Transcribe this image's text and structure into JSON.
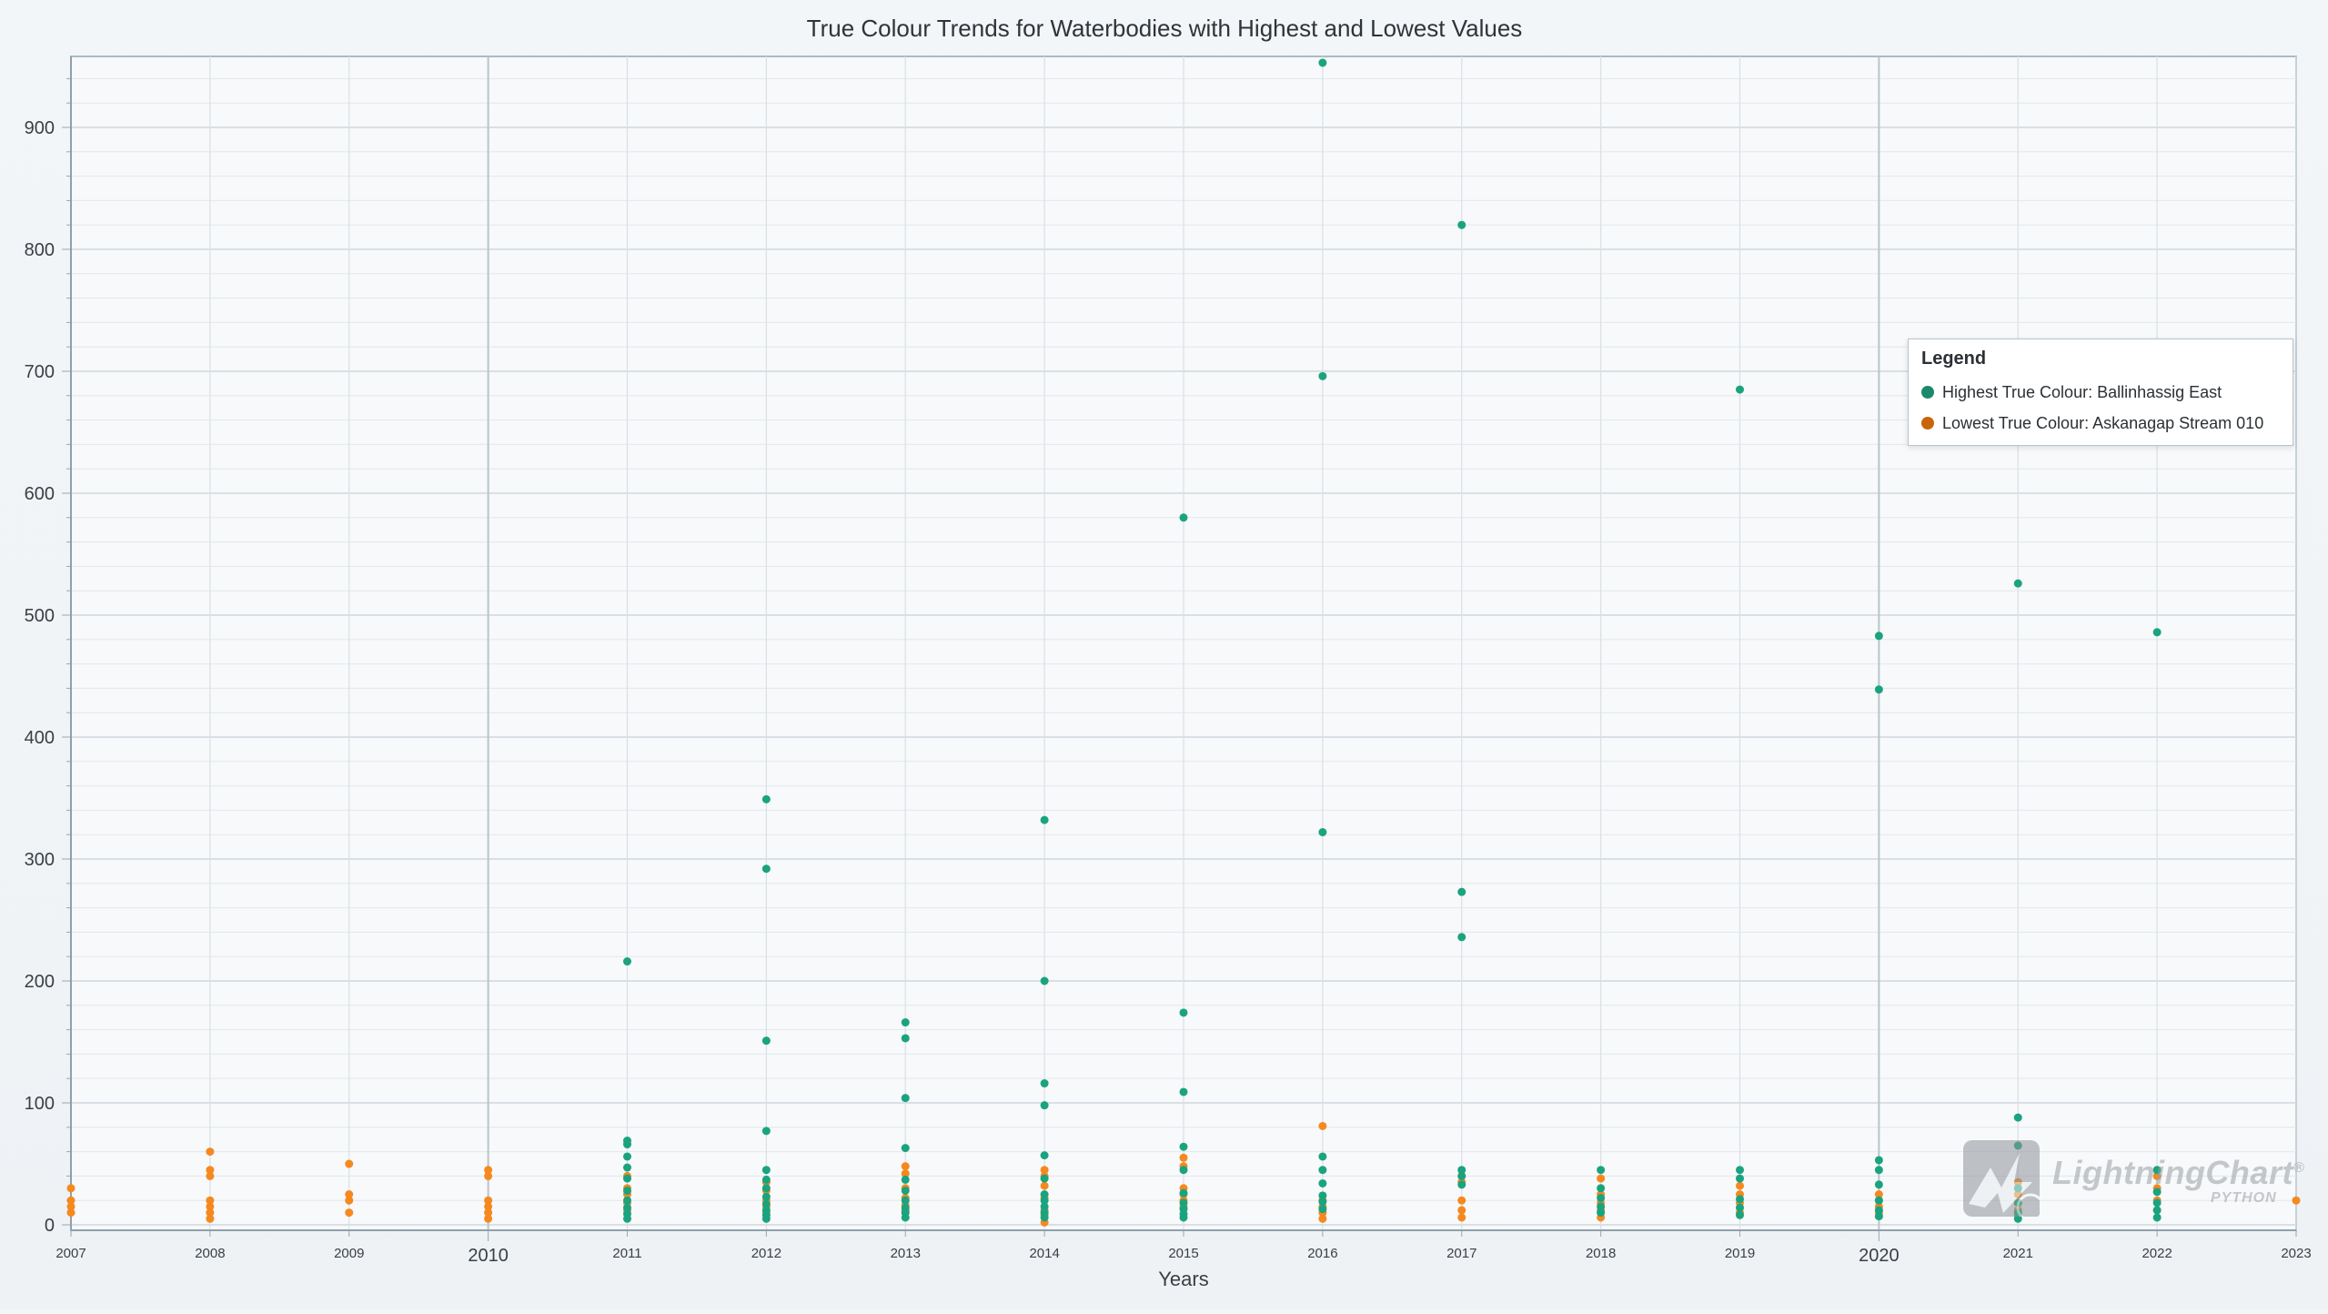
{
  "chart_data": {
    "type": "scatter",
    "title": "True Colour Trends for Waterbodies with Highest and Lowest Values",
    "xlabel": "Years",
    "ylabel": "",
    "xlim": [
      2007,
      2023
    ],
    "ylim": [
      0,
      960
    ],
    "x_ticks": [
      {
        "value": 2007,
        "label": "2007",
        "major": false
      },
      {
        "value": 2008,
        "label": "2008",
        "major": false
      },
      {
        "value": 2009,
        "label": "2009",
        "major": false
      },
      {
        "value": 2010,
        "label": "2010",
        "major": true
      },
      {
        "value": 2011,
        "label": "2011",
        "major": false
      },
      {
        "value": 2012,
        "label": "2012",
        "major": false
      },
      {
        "value": 2013,
        "label": "2013",
        "major": false
      },
      {
        "value": 2014,
        "label": "2014",
        "major": false
      },
      {
        "value": 2015,
        "label": "2015",
        "major": false
      },
      {
        "value": 2016,
        "label": "2016",
        "major": false
      },
      {
        "value": 2017,
        "label": "2017",
        "major": false
      },
      {
        "value": 2018,
        "label": "2018",
        "major": false
      },
      {
        "value": 2019,
        "label": "2019",
        "major": false
      },
      {
        "value": 2020,
        "label": "2020",
        "major": true
      },
      {
        "value": 2021,
        "label": "2021",
        "major": false
      },
      {
        "value": 2022,
        "label": "2022",
        "major": false
      },
      {
        "value": 2023,
        "label": "2023",
        "major": false
      }
    ],
    "y_ticks": [
      0,
      100,
      200,
      300,
      400,
      500,
      600,
      700,
      800,
      900
    ],
    "grid": true,
    "legend_position": "top-right",
    "series": [
      {
        "name": "Highest True Colour: Ballinhassig East",
        "color": "#1aa37f",
        "points": [
          [
            2011,
            216
          ],
          [
            2011,
            69
          ],
          [
            2011,
            66
          ],
          [
            2011,
            56
          ],
          [
            2011,
            47
          ],
          [
            2011,
            38
          ],
          [
            2011,
            28
          ],
          [
            2011,
            20
          ],
          [
            2011,
            14
          ],
          [
            2011,
            9
          ],
          [
            2011,
            5
          ],
          [
            2012,
            349
          ],
          [
            2012,
            292
          ],
          [
            2012,
            151
          ],
          [
            2012,
            77
          ],
          [
            2012,
            45
          ],
          [
            2012,
            37
          ],
          [
            2012,
            30
          ],
          [
            2012,
            23
          ],
          [
            2012,
            17
          ],
          [
            2012,
            12
          ],
          [
            2012,
            8
          ],
          [
            2012,
            5
          ],
          [
            2013,
            166
          ],
          [
            2013,
            153
          ],
          [
            2013,
            104
          ],
          [
            2013,
            63
          ],
          [
            2013,
            37
          ],
          [
            2013,
            28
          ],
          [
            2013,
            20
          ],
          [
            2013,
            14
          ],
          [
            2013,
            10
          ],
          [
            2013,
            6
          ],
          [
            2014,
            332
          ],
          [
            2014,
            200
          ],
          [
            2014,
            116
          ],
          [
            2014,
            98
          ],
          [
            2014,
            57
          ],
          [
            2014,
            38
          ],
          [
            2014,
            25
          ],
          [
            2014,
            20
          ],
          [
            2014,
            15
          ],
          [
            2014,
            10
          ],
          [
            2014,
            6
          ],
          [
            2015,
            580
          ],
          [
            2015,
            174
          ],
          [
            2015,
            109
          ],
          [
            2015,
            64
          ],
          [
            2015,
            45
          ],
          [
            2015,
            26
          ],
          [
            2015,
            18
          ],
          [
            2015,
            13
          ],
          [
            2015,
            9
          ],
          [
            2015,
            6
          ],
          [
            2016,
            953
          ],
          [
            2016,
            696
          ],
          [
            2016,
            322
          ],
          [
            2016,
            56
          ],
          [
            2016,
            45
          ],
          [
            2016,
            34
          ],
          [
            2016,
            24
          ],
          [
            2016,
            19
          ],
          [
            2016,
            13
          ],
          [
            2017,
            820
          ],
          [
            2017,
            273
          ],
          [
            2017,
            236
          ],
          [
            2017,
            45
          ],
          [
            2017,
            40
          ],
          [
            2017,
            33
          ],
          [
            2018,
            45
          ],
          [
            2018,
            30
          ],
          [
            2018,
            22
          ],
          [
            2018,
            15
          ],
          [
            2018,
            10
          ],
          [
            2019,
            685
          ],
          [
            2019,
            45
          ],
          [
            2019,
            38
          ],
          [
            2019,
            21
          ],
          [
            2019,
            14
          ],
          [
            2019,
            8
          ],
          [
            2020,
            483
          ],
          [
            2020,
            439
          ],
          [
            2020,
            53
          ],
          [
            2020,
            45
          ],
          [
            2020,
            33
          ],
          [
            2020,
            20
          ],
          [
            2020,
            12
          ],
          [
            2020,
            7
          ],
          [
            2021,
            526
          ],
          [
            2021,
            88
          ],
          [
            2021,
            65
          ],
          [
            2021,
            30
          ],
          [
            2021,
            18
          ],
          [
            2021,
            10
          ],
          [
            2021,
            5
          ],
          [
            2022,
            486
          ],
          [
            2022,
            45
          ],
          [
            2022,
            27
          ],
          [
            2022,
            18
          ],
          [
            2022,
            12
          ],
          [
            2022,
            6
          ]
        ]
      },
      {
        "name": "Lowest True Colour: Askanagap Stream 010",
        "color": "#f5891f",
        "points": [
          [
            2007,
            30
          ],
          [
            2007,
            20
          ],
          [
            2007,
            15
          ],
          [
            2007,
            10
          ],
          [
            2008,
            60
          ],
          [
            2008,
            45
          ],
          [
            2008,
            40
          ],
          [
            2008,
            20
          ],
          [
            2008,
            15
          ],
          [
            2008,
            10
          ],
          [
            2008,
            5
          ],
          [
            2009,
            50
          ],
          [
            2009,
            25
          ],
          [
            2009,
            20
          ],
          [
            2009,
            10
          ],
          [
            2010,
            45
          ],
          [
            2010,
            40
          ],
          [
            2010,
            20
          ],
          [
            2010,
            15
          ],
          [
            2010,
            10
          ],
          [
            2010,
            5
          ],
          [
            2011,
            40
          ],
          [
            2011,
            30
          ],
          [
            2011,
            25
          ],
          [
            2011,
            18
          ],
          [
            2011,
            12
          ],
          [
            2012,
            35
          ],
          [
            2012,
            28
          ],
          [
            2012,
            20
          ],
          [
            2012,
            15
          ],
          [
            2012,
            10
          ],
          [
            2013,
            48
          ],
          [
            2013,
            42
          ],
          [
            2013,
            30
          ],
          [
            2013,
            22
          ],
          [
            2013,
            16
          ],
          [
            2013,
            12
          ],
          [
            2014,
            45
          ],
          [
            2014,
            40
          ],
          [
            2014,
            32
          ],
          [
            2014,
            22
          ],
          [
            2014,
            12
          ],
          [
            2014,
            8
          ],
          [
            2014,
            2
          ],
          [
            2015,
            55
          ],
          [
            2015,
            48
          ],
          [
            2015,
            30
          ],
          [
            2015,
            25
          ],
          [
            2015,
            20
          ],
          [
            2015,
            15
          ],
          [
            2016,
            81
          ],
          [
            2016,
            20
          ],
          [
            2016,
            15
          ],
          [
            2016,
            10
          ],
          [
            2016,
            5
          ],
          [
            2017,
            40
          ],
          [
            2017,
            35
          ],
          [
            2017,
            20
          ],
          [
            2017,
            12
          ],
          [
            2017,
            6
          ],
          [
            2018,
            38
          ],
          [
            2018,
            25
          ],
          [
            2018,
            18
          ],
          [
            2018,
            12
          ],
          [
            2018,
            6
          ],
          [
            2019,
            32
          ],
          [
            2019,
            25
          ],
          [
            2019,
            18
          ],
          [
            2019,
            10
          ],
          [
            2020,
            25
          ],
          [
            2020,
            20
          ],
          [
            2020,
            15
          ],
          [
            2020,
            10
          ],
          [
            2021,
            35
          ],
          [
            2021,
            25
          ],
          [
            2021,
            18
          ],
          [
            2021,
            12
          ],
          [
            2021,
            8
          ],
          [
            2022,
            40
          ],
          [
            2022,
            30
          ],
          [
            2022,
            20
          ],
          [
            2022,
            12
          ],
          [
            2023,
            20
          ]
        ]
      }
    ]
  },
  "legend": {
    "title": "Legend",
    "items": [
      {
        "label": "Highest True Colour: Ballinhassig East",
        "color": "#1a8a6b"
      },
      {
        "label": "Lowest True Colour: Askanagap Stream 010",
        "color": "#c8650a"
      }
    ]
  },
  "watermark": {
    "brand": "LightningChart",
    "mark": "®",
    "sub": "PYTHON"
  }
}
